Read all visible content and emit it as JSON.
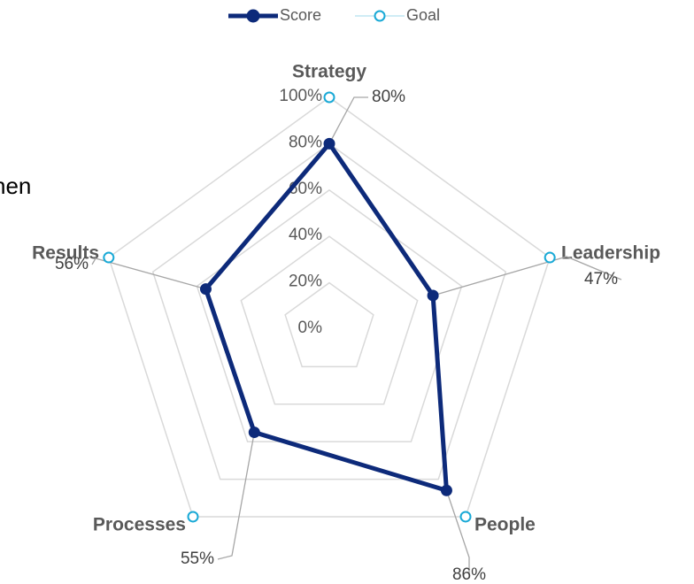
{
  "background_text": "hen",
  "chart_data": {
    "type": "radar",
    "categories": [
      "Strategy",
      "Leadership",
      "People",
      "Processes",
      "Results"
    ],
    "series": [
      {
        "name": "Score",
        "color": "#0d2a7a",
        "values": [
          80,
          47,
          86,
          55,
          56
        ],
        "value_labels": [
          "80%",
          "47%",
          "86%",
          "55%",
          "56%"
        ]
      },
      {
        "name": "Goal",
        "color": "#19a9d6",
        "values": [
          100,
          100,
          100,
          100,
          100
        ]
      }
    ],
    "ylim": [
      0,
      100
    ],
    "yticks": [
      {
        "value": 0,
        "label": "0%"
      },
      {
        "value": 20,
        "label": "20%"
      },
      {
        "value": 40,
        "label": "40%"
      },
      {
        "value": 60,
        "label": "60%"
      },
      {
        "value": 80,
        "label": "80%"
      },
      {
        "value": 100,
        "label": "100%"
      }
    ],
    "grid": true,
    "legend": "top"
  }
}
